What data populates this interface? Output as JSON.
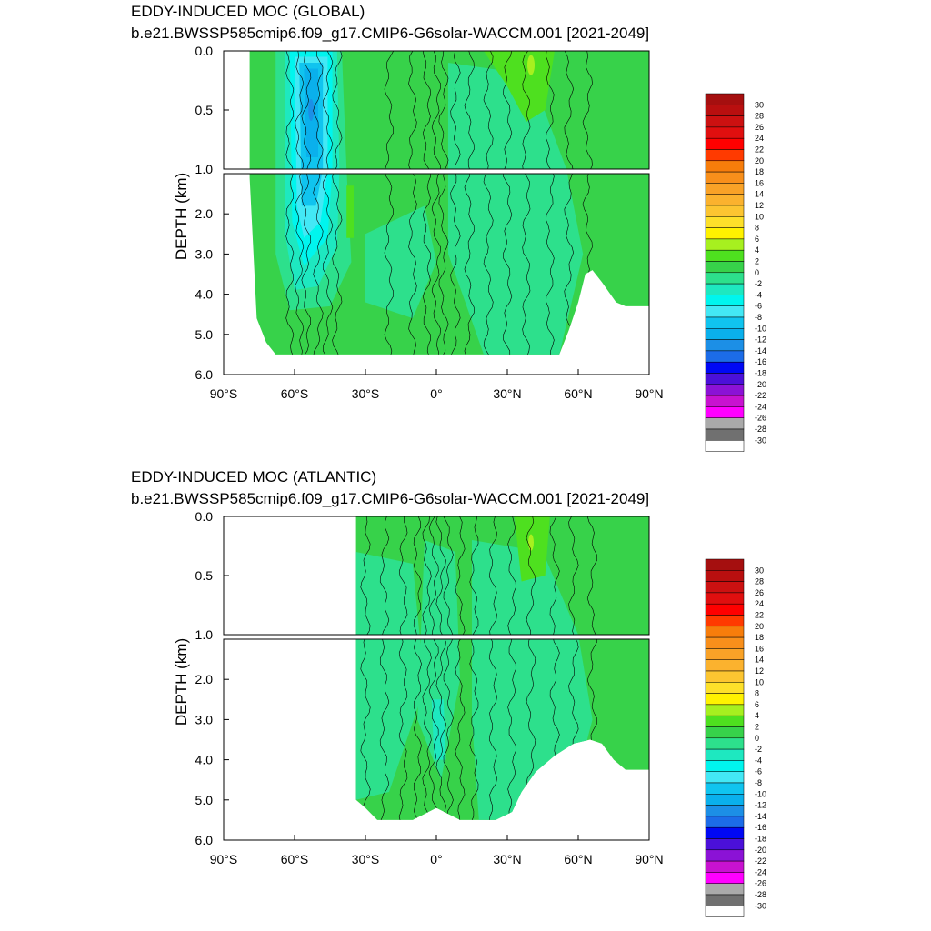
{
  "chart_data": [
    {
      "type": "heatmap",
      "title": "EDDY-INDUCED MOC (GLOBAL)",
      "subtitle": "b.e21.BWSSP585cmip6.f09_g17.CMIP6-G6solar-WACCM.001 [2021-2049]",
      "xlabel": "",
      "ylabel": "DEPTH (km)",
      "xlim": [
        -90,
        90
      ],
      "ylim_upper": [
        0.0,
        1.0
      ],
      "ylim_lower": [
        1.0,
        6.0
      ],
      "x_ticks": [
        "90°S",
        "60°S",
        "30°S",
        "0°",
        "30°N",
        "60°N",
        "90°N"
      ],
      "y_ticks_upper": [
        "0.0",
        "0.5",
        "1.0"
      ],
      "y_ticks_lower": [
        "2.0",
        "3.0",
        "4.0",
        "5.0",
        "6.0"
      ],
      "ocean_lat_range": [
        -79,
        90
      ],
      "bottom_depth_profile": [
        [
          -79,
          1.1
        ],
        [
          -76,
          4.6
        ],
        [
          -72,
          5.2
        ],
        [
          -68,
          5.5
        ],
        [
          -40,
          5.5
        ],
        [
          -20,
          5.5
        ],
        [
          0,
          5.5
        ],
        [
          20,
          5.5
        ],
        [
          40,
          5.5
        ],
        [
          52,
          5.5
        ],
        [
          56,
          4.9
        ],
        [
          60,
          4.2
        ],
        [
          63,
          3.5
        ],
        [
          66,
          3.4
        ],
        [
          70,
          3.7
        ],
        [
          76,
          4.2
        ],
        [
          80,
          4.3
        ],
        [
          90,
          4.3
        ]
      ],
      "features": [
        {
          "label": "Southern Ocean negative cell",
          "lat_range": [
            -65,
            -42
          ],
          "depth_range": [
            0.0,
            4.2
          ],
          "min_value": -14
        },
        {
          "label": "positive cell",
          "lat": 40,
          "depth": 0.1,
          "max_value": 4
        }
      ],
      "grid": false
    },
    {
      "type": "heatmap",
      "title": "EDDY-INDUCED MOC (ATLANTIC)",
      "subtitle": "b.e21.BWSSP585cmip6.f09_g17.CMIP6-G6solar-WACCM.001 [2021-2049]",
      "xlabel": "",
      "ylabel": "DEPTH (km)",
      "xlim": [
        -90,
        90
      ],
      "ylim_upper": [
        0.0,
        1.0
      ],
      "ylim_lower": [
        1.0,
        6.0
      ],
      "x_ticks": [
        "90°S",
        "60°S",
        "30°S",
        "0°",
        "30°N",
        "60°N",
        "90°N"
      ],
      "y_ticks_upper": [
        "0.0",
        "0.5",
        "1.0"
      ],
      "y_ticks_lower": [
        "2.0",
        "3.0",
        "4.0",
        "5.0",
        "6.0"
      ],
      "ocean_lat_range": [
        -34,
        90
      ],
      "bottom_depth_profile": [
        [
          -34,
          5.0
        ],
        [
          -30,
          5.2
        ],
        [
          -25,
          5.5
        ],
        [
          -10,
          5.5
        ],
        [
          0,
          5.2
        ],
        [
          10,
          5.5
        ],
        [
          25,
          5.5
        ],
        [
          32,
          5.3
        ],
        [
          36,
          4.8
        ],
        [
          42,
          4.3
        ],
        [
          50,
          3.9
        ],
        [
          58,
          3.6
        ],
        [
          65,
          3.5
        ],
        [
          70,
          3.6
        ],
        [
          75,
          4.0
        ],
        [
          80,
          4.25
        ],
        [
          90,
          4.25
        ]
      ],
      "features": [
        {
          "label": "positive cell",
          "lat": 40,
          "depth": 0.2,
          "max_value": 4
        }
      ],
      "grid": false
    }
  ],
  "colorbar": {
    "labels": [
      "30",
      "28",
      "26",
      "24",
      "22",
      "20",
      "18",
      "16",
      "14",
      "12",
      "10",
      "8",
      "6",
      "4",
      "2",
      "0",
      "-2",
      "-4",
      "-6",
      "-8",
      "-10",
      "-12",
      "-14",
      "-16",
      "-18",
      "-20",
      "-22",
      "-24",
      "-26",
      "-28",
      "-30"
    ],
    "colors": [
      "#a50f0f",
      "#b90f0f",
      "#cc1111",
      "#e00f0f",
      "#ff0000",
      "#ff3a00",
      "#f77d0b",
      "#f88f1b",
      "#f9a227",
      "#fbb22e",
      "#fcc531",
      "#fde02a",
      "#fff200",
      "#a7f01f",
      "#4ee01f",
      "#37d24a",
      "#2de08c",
      "#1ee8c0",
      "#00f5ee",
      "#43e8f5",
      "#10c4ef",
      "#0ab0ec",
      "#1c8fe6",
      "#1c6ce8",
      "#0008f5",
      "#4b10d9",
      "#8b12d6",
      "#c812d0",
      "#ff00ff",
      "#aaaaaa",
      "#707070",
      "#ffffff"
    ]
  }
}
